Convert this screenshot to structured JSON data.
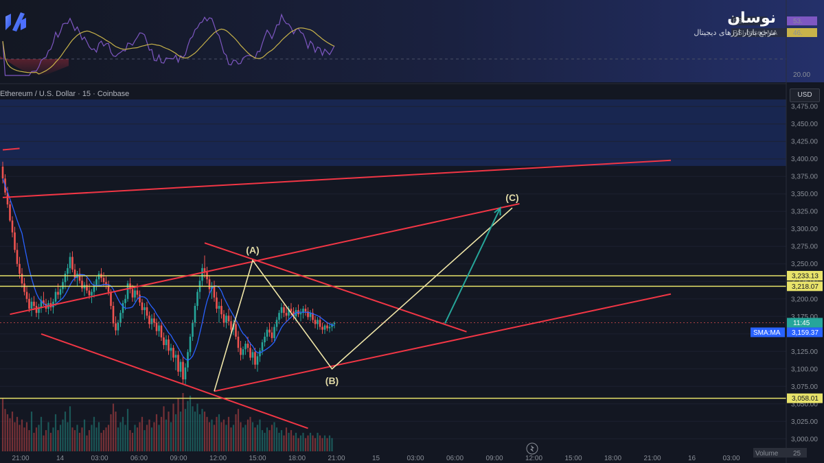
{
  "brand": {
    "name": "نوسان",
    "tagline": "مرجع بازار ارزهای دیجیتال",
    "logo_icon": "noosan-logo-icon"
  },
  "chart_header": {
    "symbol": "Ethereum / U.S. Dollar · 15 · Coinbase",
    "currency": "USD"
  },
  "rsi_panel": {
    "level_label": "20.00",
    "legend": [
      "RSI",
      "RSI-based MA"
    ],
    "values": [
      "53.",
      "46."
    ]
  },
  "price_badges": {
    "countdown": "11:45",
    "sma_label": "SMA:MA",
    "sma_value": "3,159.37",
    "levels": [
      "3,233.13",
      "3,218.07",
      "3,058.01"
    ]
  },
  "volume_label": "Volume",
  "volume_value": "25",
  "chart_data": {
    "type": "candlestick",
    "y_axis": {
      "range": [
        2990,
        3485
      ],
      "ticks": [
        "3,475.00",
        "3,450.00",
        "3,425.00",
        "3,400.00",
        "3,375.00",
        "3,350.00",
        "3,325.00",
        "3,300.00",
        "3,275.00",
        "3,250.00",
        "3,225.00",
        "3,200.00",
        "3,175.00",
        "3,150.00",
        "3,125.00",
        "3,100.00",
        "3,075.00",
        "3,050.00",
        "3,025.00",
        "3,000.00"
      ]
    },
    "x_axis": {
      "ticks": [
        "21:00",
        "14",
        "03:00",
        "06:00",
        "09:00",
        "12:00",
        "15:00",
        "18:00",
        "21:00",
        "15",
        "03:00",
        "06:00",
        "09:00",
        "12:00",
        "15:00",
        "18:00",
        "21:00",
        "16",
        "03:00"
      ]
    },
    "resistance_zone": [
      3390,
      3485
    ],
    "horizontal_levels": [
      3233.13,
      3218.07,
      3058.01
    ],
    "wave_points": [
      {
        "label": "(A)",
        "bar": 104,
        "price": 3255
      },
      {
        "label": "(B)",
        "bar": 137,
        "price": 3100
      },
      {
        "label": "(C)",
        "bar": 212,
        "price": 3330
      }
    ],
    "wave_path": [
      {
        "bar": 88,
        "price": 3068
      },
      {
        "bar": 104,
        "price": 3255
      },
      {
        "bar": 137,
        "price": 3100
      },
      {
        "bar": 212,
        "price": 3330
      }
    ],
    "projection": {
      "from": {
        "bar": 184,
        "price": 3165
      },
      "to": {
        "bar": 207,
        "price": 3330
      }
    },
    "trendlines": [
      {
        "from": {
          "bar": 0,
          "price": 3345
        },
        "to": {
          "bar": 278,
          "price": 3398
        }
      },
      {
        "from": {
          "bar": 3,
          "price": 3178
        },
        "to": {
          "bar": 215,
          "price": 3336
        }
      },
      {
        "from": {
          "bar": 84,
          "price": 3280
        },
        "to": {
          "bar": 193,
          "price": 3153
        }
      },
      {
        "from": {
          "bar": 16,
          "price": 3150
        },
        "to": {
          "bar": 127,
          "price": 3015
        }
      },
      {
        "from": {
          "bar": 88,
          "price": 3068
        },
        "to": {
          "bar": 278,
          "price": 3207
        }
      },
      {
        "from": {
          "bar": 0,
          "price": 3413
        },
        "to": {
          "bar": 7,
          "price": 3415
        }
      }
    ],
    "candles": [
      [
        3389,
        3396,
        3365,
        3372
      ],
      [
        3372,
        3378,
        3348,
        3352
      ],
      [
        3352,
        3360,
        3330,
        3335
      ],
      [
        3335,
        3340,
        3310,
        3312
      ],
      [
        3312,
        3318,
        3288,
        3295
      ],
      [
        3295,
        3303,
        3266,
        3270
      ],
      [
        3270,
        3280,
        3246,
        3250
      ],
      [
        3250,
        3260,
        3229,
        3236
      ],
      [
        3236,
        3244,
        3216,
        3222
      ],
      [
        3222,
        3230,
        3205,
        3210
      ],
      [
        3210,
        3219,
        3195,
        3200
      ],
      [
        3200,
        3208,
        3181,
        3186
      ],
      [
        3186,
        3202,
        3175,
        3196
      ],
      [
        3196,
        3204,
        3184,
        3190
      ],
      [
        3190,
        3196,
        3174,
        3180
      ],
      [
        3180,
        3193,
        3171,
        3188
      ],
      [
        3188,
        3204,
        3180,
        3198
      ],
      [
        3198,
        3210,
        3190,
        3193
      ],
      [
        3193,
        3200,
        3181,
        3186
      ],
      [
        3186,
        3198,
        3178,
        3194
      ],
      [
        3194,
        3202,
        3183,
        3188
      ],
      [
        3188,
        3200,
        3179,
        3196
      ],
      [
        3196,
        3215,
        3190,
        3210
      ],
      [
        3210,
        3222,
        3200,
        3206
      ],
      [
        3206,
        3218,
        3198,
        3214
      ],
      [
        3214,
        3229,
        3208,
        3224
      ],
      [
        3224,
        3240,
        3214,
        3236
      ],
      [
        3236,
        3250,
        3226,
        3244
      ],
      [
        3244,
        3266,
        3236,
        3260
      ],
      [
        3260,
        3268,
        3238,
        3242
      ],
      [
        3242,
        3250,
        3225,
        3230
      ],
      [
        3230,
        3240,
        3218,
        3236
      ],
      [
        3236,
        3244,
        3222,
        3226
      ],
      [
        3226,
        3234,
        3210,
        3215
      ],
      [
        3215,
        3224,
        3204,
        3220
      ],
      [
        3220,
        3230,
        3208,
        3212
      ],
      [
        3212,
        3222,
        3200,
        3205
      ],
      [
        3205,
        3214,
        3194,
        3210
      ],
      [
        3210,
        3225,
        3202,
        3220
      ],
      [
        3220,
        3232,
        3212,
        3228
      ],
      [
        3228,
        3240,
        3220,
        3236
      ],
      [
        3236,
        3244,
        3224,
        3230
      ],
      [
        3230,
        3238,
        3218,
        3224
      ],
      [
        3224,
        3232,
        3214,
        3220
      ],
      [
        3220,
        3226,
        3205,
        3210
      ],
      [
        3210,
        3214,
        3185,
        3190
      ],
      [
        3190,
        3196,
        3160,
        3165
      ],
      [
        3165,
        3175,
        3148,
        3155
      ],
      [
        3155,
        3170,
        3148,
        3166
      ],
      [
        3166,
        3184,
        3160,
        3180
      ],
      [
        3180,
        3198,
        3172,
        3194
      ],
      [
        3194,
        3206,
        3184,
        3200
      ],
      [
        3200,
        3226,
        3196,
        3222
      ],
      [
        3222,
        3230,
        3208,
        3214
      ],
      [
        3214,
        3220,
        3196,
        3202
      ],
      [
        3202,
        3218,
        3196,
        3212
      ],
      [
        3212,
        3222,
        3200,
        3206
      ],
      [
        3206,
        3212,
        3190,
        3195
      ],
      [
        3195,
        3200,
        3178,
        3184
      ],
      [
        3184,
        3194,
        3170,
        3188
      ],
      [
        3188,
        3196,
        3172,
        3176
      ],
      [
        3176,
        3182,
        3158,
        3164
      ],
      [
        3164,
        3178,
        3156,
        3172
      ],
      [
        3172,
        3180,
        3160,
        3166
      ],
      [
        3166,
        3172,
        3148,
        3154
      ],
      [
        3154,
        3168,
        3146,
        3162
      ],
      [
        3162,
        3166,
        3140,
        3145
      ],
      [
        3145,
        3152,
        3128,
        3134
      ],
      [
        3134,
        3148,
        3126,
        3142
      ],
      [
        3142,
        3148,
        3120,
        3126
      ],
      [
        3126,
        3136,
        3112,
        3130
      ],
      [
        3130,
        3134,
        3110,
        3116
      ],
      [
        3116,
        3126,
        3098,
        3120
      ],
      [
        3120,
        3126,
        3090,
        3096
      ],
      [
        3096,
        3114,
        3088,
        3110
      ],
      [
        3110,
        3118,
        3078,
        3085
      ],
      [
        3085,
        3108,
        3078,
        3102
      ],
      [
        3102,
        3128,
        3096,
        3124
      ],
      [
        3124,
        3150,
        3118,
        3146
      ],
      [
        3146,
        3170,
        3140,
        3166
      ],
      [
        3166,
        3194,
        3160,
        3190
      ],
      [
        3190,
        3214,
        3184,
        3210
      ],
      [
        3210,
        3232,
        3200,
        3226
      ],
      [
        3226,
        3250,
        3218,
        3244
      ],
      [
        3244,
        3262,
        3230,
        3238
      ],
      [
        3238,
        3246,
        3222,
        3228
      ],
      [
        3228,
        3234,
        3208,
        3214
      ],
      [
        3214,
        3224,
        3200,
        3218
      ],
      [
        3218,
        3226,
        3196,
        3202
      ],
      [
        3202,
        3210,
        3180,
        3186
      ],
      [
        3186,
        3196,
        3166,
        3190
      ],
      [
        3190,
        3200,
        3172,
        3178
      ],
      [
        3178,
        3184,
        3160,
        3166
      ],
      [
        3166,
        3180,
        3158,
        3176
      ],
      [
        3176,
        3186,
        3162,
        3168
      ],
      [
        3168,
        3176,
        3150,
        3156
      ],
      [
        3156,
        3170,
        3148,
        3164
      ],
      [
        3164,
        3168,
        3142,
        3146
      ],
      [
        3146,
        3154,
        3124,
        3130
      ],
      [
        3130,
        3140,
        3112,
        3120
      ],
      [
        3120,
        3132,
        3114,
        3128
      ],
      [
        3128,
        3140,
        3120,
        3136
      ],
      [
        3136,
        3146,
        3124,
        3130
      ],
      [
        3130,
        3138,
        3112,
        3116
      ],
      [
        3116,
        3128,
        3106,
        3124
      ],
      [
        3124,
        3130,
        3100,
        3106
      ],
      [
        3106,
        3122,
        3096,
        3118
      ],
      [
        3118,
        3130,
        3110,
        3126
      ],
      [
        3126,
        3142,
        3120,
        3138
      ],
      [
        3138,
        3152,
        3132,
        3146
      ],
      [
        3146,
        3160,
        3140,
        3156
      ],
      [
        3156,
        3166,
        3146,
        3152
      ],
      [
        3152,
        3160,
        3138,
        3144
      ],
      [
        3144,
        3164,
        3140,
        3160
      ],
      [
        3160,
        3174,
        3154,
        3170
      ],
      [
        3170,
        3184,
        3164,
        3180
      ],
      [
        3180,
        3194,
        3172,
        3188
      ],
      [
        3188,
        3192,
        3174,
        3180
      ],
      [
        3180,
        3188,
        3168,
        3176
      ],
      [
        3176,
        3190,
        3170,
        3186
      ],
      [
        3186,
        3194,
        3176,
        3182
      ],
      [
        3182,
        3188,
        3170,
        3175
      ],
      [
        3175,
        3188,
        3168,
        3184
      ],
      [
        3184,
        3192,
        3174,
        3178
      ],
      [
        3178,
        3186,
        3168,
        3180
      ],
      [
        3180,
        3190,
        3172,
        3186
      ],
      [
        3186,
        3192,
        3176,
        3182
      ],
      [
        3182,
        3188,
        3170,
        3174
      ],
      [
        3174,
        3184,
        3168,
        3180
      ],
      [
        3180,
        3186,
        3166,
        3170
      ],
      [
        3170,
        3176,
        3158,
        3164
      ],
      [
        3164,
        3174,
        3156,
        3170
      ],
      [
        3170,
        3176,
        3156,
        3160
      ],
      [
        3160,
        3166,
        3150,
        3156
      ],
      [
        3156,
        3164,
        3150,
        3162
      ],
      [
        3162,
        3166,
        3154,
        3158
      ],
      [
        3158,
        3164,
        3152,
        3160
      ],
      [
        3160,
        3166,
        3154,
        3164
      ],
      [
        3164,
        3168,
        3158,
        3166
      ]
    ],
    "volumes": [
      40,
      32,
      28,
      25,
      30,
      22,
      26,
      20,
      24,
      18,
      22,
      16,
      30,
      14,
      18,
      20,
      26,
      12,
      16,
      22,
      14,
      18,
      28,
      16,
      20,
      24,
      30,
      22,
      34,
      18,
      16,
      20,
      14,
      18,
      24,
      12,
      16,
      20,
      26,
      18,
      22,
      14,
      16,
      18,
      20,
      28,
      36,
      30,
      18,
      22,
      26,
      20,
      32,
      16,
      14,
      20,
      18,
      22,
      26,
      16,
      20,
      24,
      18,
      22,
      28,
      20,
      26,
      34,
      24,
      30,
      22,
      36,
      28,
      40,
      30,
      44,
      32,
      38,
      42,
      34,
      30,
      36,
      28,
      32,
      30,
      26,
      22,
      24,
      20,
      26,
      28,
      22,
      24,
      20,
      26,
      18,
      20,
      28,
      32,
      22,
      18,
      20,
      24,
      26,
      22,
      18,
      20,
      24,
      16,
      14,
      18,
      16,
      20,
      22,
      18,
      14,
      16,
      12,
      18,
      14,
      16,
      12,
      14,
      10,
      12,
      14,
      10,
      12,
      14,
      12,
      10,
      14,
      12,
      10,
      12,
      10,
      12,
      10
    ]
  }
}
